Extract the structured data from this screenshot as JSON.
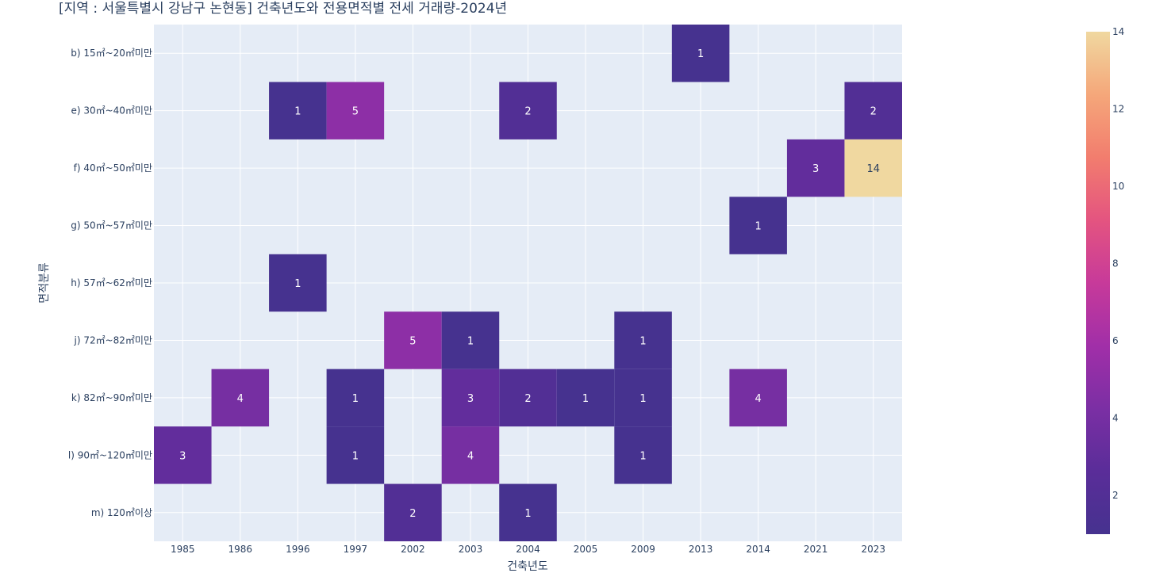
{
  "chart_data": {
    "type": "heatmap",
    "title": "[지역 : 서울특별시 강남구 논현동] 건축년도와 전용면적별 전세 거래량-2024년",
    "xlabel": "건축년도",
    "ylabel": "면적분류",
    "x_categories": [
      "1985",
      "1986",
      "1996",
      "1997",
      "2002",
      "2003",
      "2004",
      "2005",
      "2009",
      "2013",
      "2014",
      "2021",
      "2023"
    ],
    "y_categories": [
      "b) 15㎡~20㎡미만",
      "e) 30㎡~40㎡미만",
      "f) 40㎡~50㎡미만",
      "g) 50㎡~57㎡미만",
      "h) 57㎡~62㎡미만",
      "j) 72㎡~82㎡미만",
      "k) 82㎡~90㎡미만",
      "l) 90㎡~120㎡미만",
      "m) 120㎡이상"
    ],
    "cells": [
      {
        "x": "2013",
        "y": "b) 15㎡~20㎡미만",
        "value": 1
      },
      {
        "x": "1996",
        "y": "e) 30㎡~40㎡미만",
        "value": 1
      },
      {
        "x": "1997",
        "y": "e) 30㎡~40㎡미만",
        "value": 5
      },
      {
        "x": "2004",
        "y": "e) 30㎡~40㎡미만",
        "value": 2
      },
      {
        "x": "2023",
        "y": "e) 30㎡~40㎡미만",
        "value": 2
      },
      {
        "x": "2021",
        "y": "f) 40㎡~50㎡미만",
        "value": 3
      },
      {
        "x": "2023",
        "y": "f) 40㎡~50㎡미만",
        "value": 14
      },
      {
        "x": "2014",
        "y": "g) 50㎡~57㎡미만",
        "value": 1
      },
      {
        "x": "1996",
        "y": "h) 57㎡~62㎡미만",
        "value": 1
      },
      {
        "x": "2002",
        "y": "j) 72㎡~82㎡미만",
        "value": 5
      },
      {
        "x": "2003",
        "y": "j) 72㎡~82㎡미만",
        "value": 1
      },
      {
        "x": "2009",
        "y": "j) 72㎡~82㎡미만",
        "value": 1
      },
      {
        "x": "1986",
        "y": "k) 82㎡~90㎡미만",
        "value": 4
      },
      {
        "x": "1997",
        "y": "k) 82㎡~90㎡미만",
        "value": 1
      },
      {
        "x": "2003",
        "y": "k) 82㎡~90㎡미만",
        "value": 3
      },
      {
        "x": "2004",
        "y": "k) 82㎡~90㎡미만",
        "value": 2
      },
      {
        "x": "2005",
        "y": "k) 82㎡~90㎡미만",
        "value": 1
      },
      {
        "x": "2009",
        "y": "k) 82㎡~90㎡미만",
        "value": 1
      },
      {
        "x": "2014",
        "y": "k) 82㎡~90㎡미만",
        "value": 4
      },
      {
        "x": "1985",
        "y": "l) 90㎡~120㎡미만",
        "value": 3
      },
      {
        "x": "1997",
        "y": "l) 90㎡~120㎡미만",
        "value": 1
      },
      {
        "x": "2003",
        "y": "l) 90㎡~120㎡미만",
        "value": 4
      },
      {
        "x": "2009",
        "y": "l) 90㎡~120㎡미만",
        "value": 1
      },
      {
        "x": "2002",
        "y": "m) 120㎡이상",
        "value": 2
      },
      {
        "x": "2004",
        "y": "m) 120㎡이상",
        "value": 1
      }
    ],
    "colorscale": {
      "min": 1,
      "max": 14,
      "ticks": [
        2,
        4,
        6,
        8,
        10,
        12,
        14
      ],
      "colors": [
        "#46328f",
        "#5a2d99",
        "#7b2fa4",
        "#a12fa8",
        "#c73a9a",
        "#e45480",
        "#f27d6e",
        "#f5a77a",
        "#f0d8a0"
      ]
    },
    "colors": {
      "plot_bg": "#e5ecf6",
      "grid": "#ffffff",
      "text": "#2a3f5f",
      "cell_text_dark": "#ffffff",
      "cell_text_light": "#2a3f5f"
    },
    "grid": true,
    "legend": "colorbar-right"
  }
}
